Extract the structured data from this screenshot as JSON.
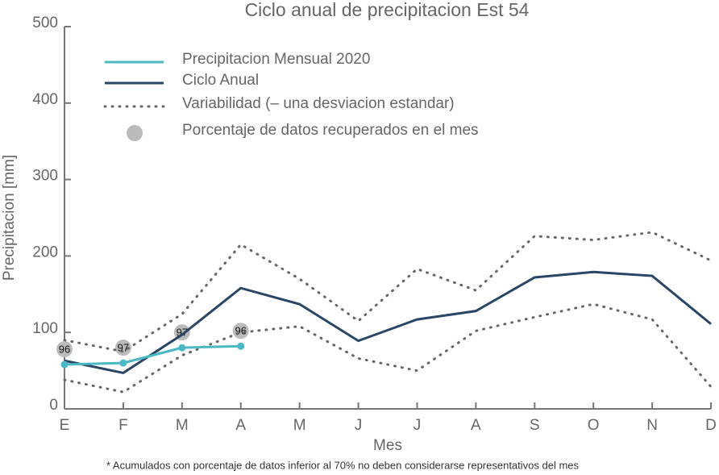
{
  "chart_data": {
    "type": "line",
    "title": "Ciclo anual de precipitacion Est 54",
    "xlabel": "Mes",
    "ylabel": "Precipitacion [mm]",
    "footnote": "* Acumulados con porcentaje de datos inferior al 70% no deben considerarse representativos del mes",
    "categories": [
      "E",
      "F",
      "M",
      "A",
      "M",
      "J",
      "J",
      "A",
      "S",
      "O",
      "N",
      "D"
    ],
    "ylim": [
      0,
      500
    ],
    "yticks": [
      0,
      100,
      200,
      300,
      400,
      500
    ],
    "series": [
      {
        "name": "Precipitacion Mensual 2020",
        "color": "#4bb8c4",
        "style": "solid-markers",
        "values": [
          58,
          60,
          80,
          82,
          null,
          null,
          null,
          null,
          null,
          null,
          null,
          null
        ]
      },
      {
        "name": "Ciclo Anual",
        "color": "#2a4565",
        "style": "solid",
        "values": [
          63,
          47,
          97,
          158,
          137,
          89,
          117,
          128,
          172,
          179,
          174,
          111
        ]
      },
      {
        "name": "Variabilidad (– una desviacion estandar)",
        "color": "#666666",
        "style": "dotted",
        "upper": [
          90,
          75,
          124,
          215,
          170,
          115,
          183,
          155,
          226,
          221,
          231,
          194
        ],
        "lower": [
          38,
          22,
          70,
          100,
          108,
          66,
          50,
          102,
          120,
          137,
          117,
          29
        ]
      },
      {
        "name": "Porcentaje de datos recuperados en el mes",
        "color": "#bbbbbb",
        "style": "percent",
        "values": [
          96,
          97,
          97,
          96,
          null,
          null,
          null,
          null,
          null,
          null,
          null,
          null
        ]
      }
    ]
  }
}
